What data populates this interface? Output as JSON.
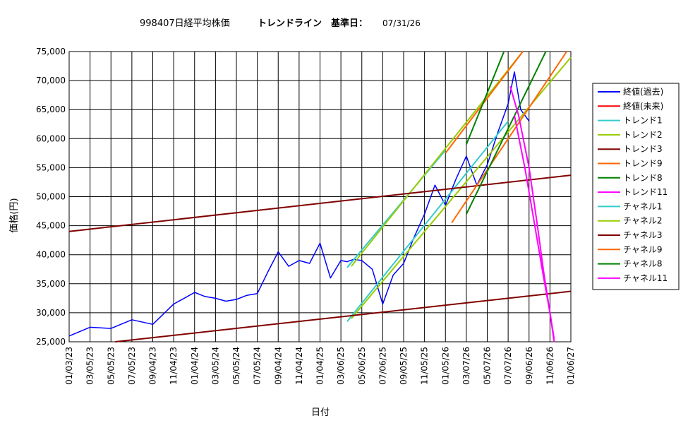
{
  "chart_data": {
    "type": "line",
    "title_left": "998407日経平均株価",
    "title_right": "トレンドライン　基準日：",
    "base_date": "07/31/26",
    "xlabel": "日付",
    "ylabel": "価格(円)",
    "ylim": [
      25000,
      75000
    ],
    "y_ticks": [
      "25,000",
      "30,000",
      "35,000",
      "40,000",
      "45,000",
      "50,000",
      "55,000",
      "60,000",
      "65,000",
      "70,000",
      "75,000"
    ],
    "x_ticks": [
      "01/03/23",
      "03/05/23",
      "05/05/23",
      "07/05/23",
      "09/04/23",
      "11/04/23",
      "01/04/24",
      "03/05/24",
      "05/05/24",
      "07/05/24",
      "09/04/24",
      "11/04/24",
      "01/04/25",
      "03/06/25",
      "05/06/25",
      "07/06/25",
      "09/05/25",
      "11/05/25",
      "01/05/26",
      "03/07/26",
      "05/07/26",
      "07/07/26",
      "09/06/26",
      "11/06/26",
      "01/06/27"
    ],
    "grid": true,
    "legend_position": "right",
    "legend": [
      {
        "name": "終値(過去)",
        "color": "#0000ff"
      },
      {
        "name": "終値(未来)",
        "color": "#ff0000"
      },
      {
        "name": "トレンド1",
        "color": "#33cccc"
      },
      {
        "name": "トレンド2",
        "color": "#99cc00"
      },
      {
        "name": "トレンド3",
        "color": "#800000"
      },
      {
        "name": "トレンド9",
        "color": "#ff6600"
      },
      {
        "name": "トレンド8",
        "color": "#008000"
      },
      {
        "name": "トレンド11",
        "color": "#ff00ff"
      },
      {
        "name": "チャネル1",
        "color": "#33cccc"
      },
      {
        "name": "チャネル2",
        "color": "#99cc00"
      },
      {
        "name": "チャネル3",
        "color": "#800000"
      },
      {
        "name": "チャネル9",
        "color": "#ff6600"
      },
      {
        "name": "チャネル8",
        "color": "#008000"
      },
      {
        "name": "チャネル11",
        "color": "#ff00ff"
      }
    ],
    "series": [
      {
        "name": "終値(過去)",
        "color": "#0000ff",
        "x": [
          0,
          1,
          2,
          3,
          4,
          5,
          6,
          6.5,
          7,
          7.5,
          8,
          8.5,
          9,
          9.5,
          10,
          10.5,
          11,
          11.5,
          12,
          12.5,
          13,
          13.3,
          13.6,
          14,
          14.5,
          15,
          15.5,
          16,
          16.5,
          17,
          17.5,
          18,
          18.5,
          19,
          19.5,
          20,
          20.5,
          21,
          21.3,
          21.6,
          22
        ],
        "y": [
          26000,
          27500,
          27300,
          28800,
          28000,
          31500,
          33500,
          32800,
          32500,
          32000,
          32300,
          33000,
          33300,
          37000,
          40500,
          38000,
          39000,
          38500,
          42000,
          36000,
          39000,
          38800,
          39200,
          39000,
          37500,
          31500,
          36500,
          38500,
          43000,
          47000,
          52000,
          48500,
          53000,
          57000,
          52000,
          55500,
          61000,
          66000,
          71500,
          65000,
          63000
        ]
      },
      {
        "name": "トレンド1",
        "color": "#33cccc",
        "x": [
          13.3,
          18
        ],
        "y": [
          37800,
          58000
        ]
      },
      {
        "name": "チャネル1",
        "color": "#33cccc",
        "x": [
          13.3,
          21
        ],
        "y": [
          28500,
          63000
        ]
      },
      {
        "name": "トレンド2",
        "color": "#99cc00",
        "x": [
          13.5,
          21.7
        ],
        "y": [
          38000,
          75000
        ]
      },
      {
        "name": "チャネル2",
        "color": "#99cc00",
        "x": [
          13.5,
          24
        ],
        "y": [
          29000,
          74000
        ]
      },
      {
        "name": "トレンド3",
        "color": "#800000",
        "x": [
          0,
          24
        ],
        "y": [
          44000,
          53700
        ]
      },
      {
        "name": "チャネル3",
        "color": "#800000",
        "x": [
          2.2,
          24
        ],
        "y": [
          25000,
          33700
        ]
      },
      {
        "name": "トレンド9",
        "color": "#ff6600",
        "x": [
          18,
          21.7
        ],
        "y": [
          57500,
          75000
        ]
      },
      {
        "name": "チャネル9",
        "color": "#ff6600",
        "x": [
          18.3,
          23.8
        ],
        "y": [
          45500,
          75000
        ]
      },
      {
        "name": "トレンド8",
        "color": "#008000",
        "x": [
          19,
          20.8
        ],
        "y": [
          59000,
          75000
        ]
      },
      {
        "name": "チャネル8",
        "color": "#008000",
        "x": [
          19,
          22.8
        ],
        "y": [
          47000,
          75000
        ]
      },
      {
        "name": "トレンド11",
        "color": "#ff00ff",
        "x": [
          21.1,
          21.5,
          22,
          22.4,
          22.7,
          23.0,
          23.2
        ],
        "y": [
          69000,
          64000,
          55000,
          45000,
          37000,
          30000,
          25000
        ]
      },
      {
        "name": "チャネル11",
        "color": "#ff00ff",
        "x": [
          21.3,
          21.8,
          22.3,
          22.7,
          23.0,
          23.2
        ],
        "y": [
          64000,
          55000,
          44500,
          36000,
          30000,
          25500
        ]
      }
    ]
  }
}
